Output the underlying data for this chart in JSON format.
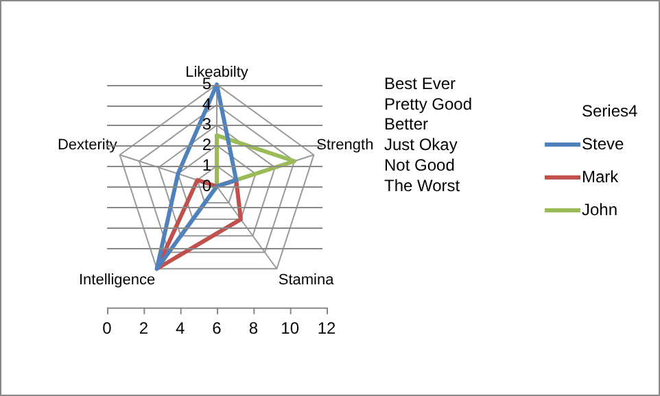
{
  "chart_data": {
    "type": "radar",
    "categories": [
      "Likeabilty",
      "Strength",
      "Stamina",
      "Intelligence",
      "Dexterity"
    ],
    "series": [
      {
        "name": "Series4",
        "values": [
          null,
          null,
          null,
          null,
          null
        ]
      },
      {
        "name": "Steve",
        "color": "#4f81bd",
        "values": [
          5,
          1,
          0,
          5,
          2
        ]
      },
      {
        "name": "Mark",
        "color": "#c0504d",
        "values": [
          0,
          1,
          2,
          5,
          1
        ]
      },
      {
        "name": "John",
        "color": "#9bbb59",
        "values": [
          2.5,
          4,
          0,
          3,
          0
        ]
      }
    ],
    "ylim": [
      0,
      5
    ],
    "yticks": [
      0,
      1,
      2,
      3,
      4,
      5
    ],
    "annotations": [
      "Best Ever",
      "Pretty Good",
      "Better",
      "Just Okay",
      "Not Good",
      "The Worst",
      "0",
      "2",
      "4",
      "6",
      "8",
      "10",
      "12"
    ],
    "grid": true,
    "legend": "right",
    "marker": "none"
  }
}
